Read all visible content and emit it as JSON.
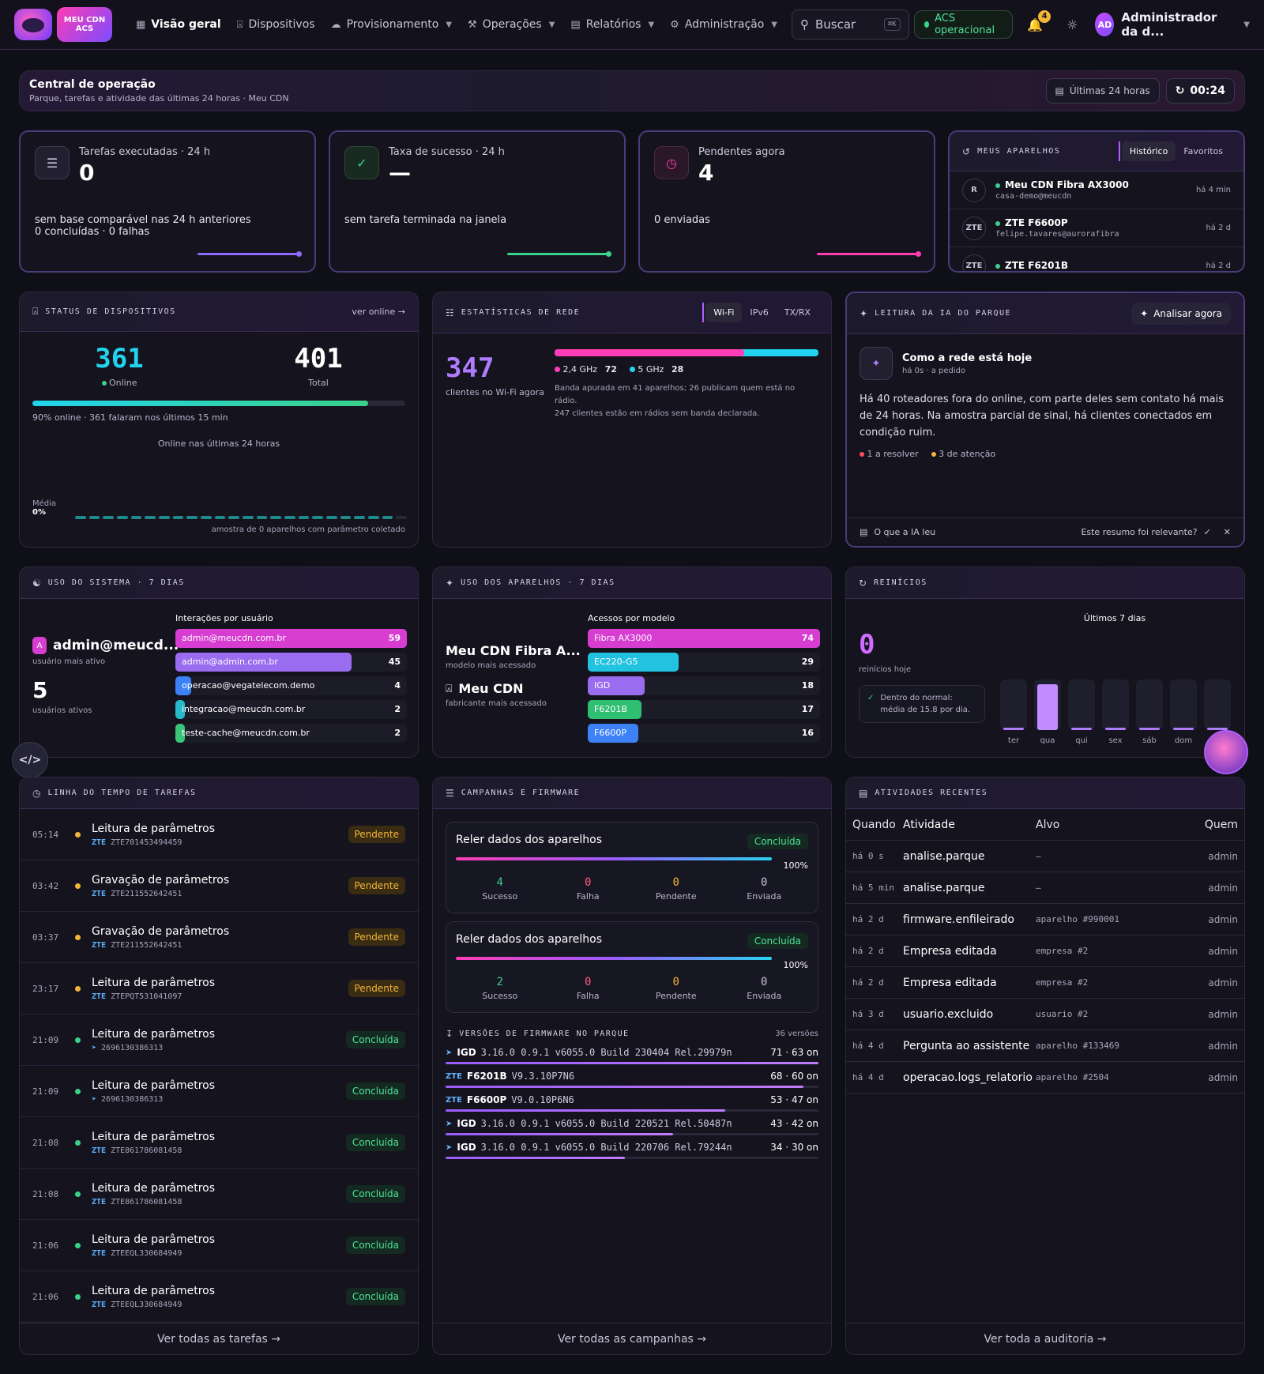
{
  "nav": {
    "logo_text_1": "MEU CDN",
    "logo_text_2": "ACS",
    "items": [
      {
        "label": "Visão geral",
        "icon": "grid-icon",
        "active": true
      },
      {
        "label": "Dispositivos",
        "icon": "router-icon"
      },
      {
        "label": "Provisionamento",
        "icon": "cloud-icon",
        "dropdown": true
      },
      {
        "label": "Operações",
        "icon": "wrench-icon",
        "dropdown": true
      },
      {
        "label": "Relatórios",
        "icon": "file-icon",
        "dropdown": true
      },
      {
        "label": "Administração",
        "icon": "gear-icon",
        "dropdown": true
      }
    ],
    "search_placeholder": "Buscar",
    "search_kbd": "⌘K",
    "acs_status": "ACS operacional",
    "notifications": "4",
    "user_initials": "AD",
    "user_name": "Administrador da d..."
  },
  "banner": {
    "title": "Central de operação",
    "subtitle": "Parque, tarefas e atividade das últimas 24 horas · Meu CDN",
    "range": "Últimas 24 horas",
    "refresh": "00:24"
  },
  "kpis": [
    {
      "label": "Tarefas executadas · 24 h",
      "value": "0",
      "foot": "sem base comparável nas 24 h anteriores",
      "foot2": "0 concluídas · 0 falhas",
      "color": "#8b6cff"
    },
    {
      "label": "Taxa de sucesso · 24 h",
      "value": "—",
      "foot": "sem tarefa terminada na janela",
      "foot2": "",
      "color": "#3ad18a"
    },
    {
      "label": "Pendentes agora",
      "value": "4",
      "foot": "0 enviadas",
      "foot2": "",
      "color": "#ff3db4"
    }
  ],
  "meus_aparelhos": {
    "title": "Meus aparelhos",
    "tabs": [
      "Histórico",
      "Favoritos"
    ],
    "items": [
      {
        "name": "Meu CDN Fibra AX3000",
        "sub": "casa-demo@meucdn",
        "time": "há 4 min",
        "icon": "R"
      },
      {
        "name": "ZTE F6600P",
        "sub": "felipe.tavares@aurorafibra",
        "time": "há 2 d",
        "icon": "ZTE"
      },
      {
        "name": "ZTE F6201B",
        "sub": "",
        "time": "há 2 d",
        "icon": "ZTE"
      }
    ]
  },
  "status_dispositivos": {
    "title": "Status de dispositivos",
    "link": "ver online →",
    "online": "361",
    "online_label": "Online",
    "total": "401",
    "total_label": "Total",
    "online_fraction": 0.9,
    "summary": "90% online · 361 falaram nos últimos 15 min",
    "chart_title": "Online nas últimas 24 horas",
    "media_label": "Média",
    "media_value": "0%",
    "note": "amostra de 0 aparelhos com parâmetro coletado"
  },
  "estatisticas_rede": {
    "title": "Estatísticas de rede",
    "tabs": [
      "Wi-Fi",
      "IPv6",
      "TX/RX"
    ],
    "clients": "347",
    "clients_label": "clientes no Wi-Fi agora",
    "band24_label": "2,4 GHz",
    "band24_value": 72,
    "band5_label": "5 GHz",
    "band5_value": 28,
    "note1": "Banda apurada em 41 aparelhos; 26 publicam quem está no rádio.",
    "note2": "247 clientes estão em rádios sem banda declarada."
  },
  "ia": {
    "title": "Leitura da IA do parque",
    "button": "Analisar agora",
    "headline": "Como a rede está hoje",
    "time": "há 0s · a pedido",
    "text": "Há 40 roteadores fora do online, com parte deles sem contato há mais de 24 horas. Na amostra parcial de sinal, há clientes conectados em condição ruim.",
    "tag1": "1 a resolver",
    "tag2": "3 de atenção",
    "footer_left": "O que a IA leu",
    "footer_right": "Este resumo foi relevante?"
  },
  "uso_sistema": {
    "title": "Uso do sistema · 7 dias",
    "top_user": "admin@meucd...",
    "top_user_initial": "A",
    "top_user_label": "usuário mais ativo",
    "active_users": "5",
    "active_users_label": "usuários ativos",
    "chart_title": "Interações por usuário",
    "bars": [
      {
        "label": "admin@meucdn.com.br",
        "value": 59,
        "color": "#d63dd0"
      },
      {
        "label": "admin@admin.com.br",
        "value": 45,
        "color": "#9a6cf0"
      },
      {
        "label": "operacao@vegatelecom.demo",
        "value": 4,
        "color": "#3c82f6"
      },
      {
        "label": "integracao@meucdn.com.br",
        "value": 2,
        "color": "#29b8c8"
      },
      {
        "label": "teste-cache@meucdn.com.br",
        "value": 2,
        "color": "#3ac47a"
      }
    ]
  },
  "uso_aparelhos": {
    "title": "Uso dos aparelhos · 7 dias",
    "model": "Meu CDN Fibra A...",
    "model_label": "modelo mais acessado",
    "maker": "Meu CDN",
    "maker_label": "fabricante mais acessado",
    "chart_title": "Acessos por modelo",
    "bars": [
      {
        "label": "Fibra AX3000",
        "value": 74,
        "color": "#d63dd0"
      },
      {
        "label": "EC220-G5",
        "value": 29,
        "color": "#22c3e0"
      },
      {
        "label": "IGD",
        "value": 18,
        "color": "#9a6cf0"
      },
      {
        "label": "F6201B",
        "value": 17,
        "color": "#2ebf72"
      },
      {
        "label": "F6600P",
        "value": 16,
        "color": "#3c82f6"
      }
    ]
  },
  "reinicios": {
    "title": "Reinícios",
    "value": "0",
    "value_label": "reinícios hoje",
    "normal_1": "Dentro do normal:",
    "normal_2": "média de 15.8 por dia.",
    "chart_title": "Últimos 7 dias",
    "days": [
      {
        "label": "ter",
        "value": 0.05
      },
      {
        "label": "qua",
        "value": 0.9
      },
      {
        "label": "qui",
        "value": 0.05
      },
      {
        "label": "sex",
        "value": 0.05
      },
      {
        "label": "sáb",
        "value": 0.05
      },
      {
        "label": "dom",
        "value": 0.05
      },
      {
        "label": "",
        "value": 0.05
      }
    ]
  },
  "timeline": {
    "title": "Linha do tempo de tarefas",
    "link": "Ver todas as tarefas →",
    "rows": [
      {
        "time": "05:14",
        "title": "Leitura de parâmetros",
        "maker": "ZTE",
        "serial": "ZTE701453494459",
        "status": "Pendente",
        "state": "pend"
      },
      {
        "time": "03:42",
        "title": "Gravação de parâmetros",
        "maker": "ZTE",
        "serial": "ZTE211552642451",
        "status": "Pendente",
        "state": "pend"
      },
      {
        "time": "03:37",
        "title": "Gravação de parâmetros",
        "maker": "ZTE",
        "serial": "ZTE211552642451",
        "status": "Pendente",
        "state": "pend"
      },
      {
        "time": "23:17",
        "title": "Leitura de parâmetros",
        "maker": "ZTE",
        "serial": "ZTEPQT531041097",
        "status": "Pendente",
        "state": "pend"
      },
      {
        "time": "21:09",
        "title": "Leitura de parâmetros",
        "maker": "",
        "serial": "2696130386313",
        "status": "Concluída",
        "state": "done"
      },
      {
        "time": "21:09",
        "title": "Leitura de parâmetros",
        "maker": "",
        "serial": "2696130386313",
        "status": "Concluída",
        "state": "done"
      },
      {
        "time": "21:08",
        "title": "Leitura de parâmetros",
        "maker": "ZTE",
        "serial": "ZTE861786081458",
        "status": "Concluída",
        "state": "done"
      },
      {
        "time": "21:08",
        "title": "Leitura de parâmetros",
        "maker": "ZTE",
        "serial": "ZTE861786081458",
        "status": "Concluída",
        "state": "done"
      },
      {
        "time": "21:06",
        "title": "Leitura de parâmetros",
        "maker": "ZTE",
        "serial": "ZTEEQL330684949",
        "status": "Concluída",
        "state": "done"
      },
      {
        "time": "21:06",
        "title": "Leitura de parâmetros",
        "maker": "ZTE",
        "serial": "ZTEEQL330684949",
        "status": "Concluída",
        "state": "done"
      }
    ]
  },
  "campanhas": {
    "title": "Campanhas e firmware",
    "link": "Ver todas as campanhas →",
    "items": [
      {
        "title": "Reler dados dos aparelhos",
        "status": "Concluída",
        "pct": "100%",
        "sucesso": "4",
        "falha": "0",
        "pendente": "0",
        "enviada": "0"
      },
      {
        "title": "Reler dados dos aparelhos",
        "status": "Concluída",
        "pct": "100%",
        "sucesso": "2",
        "falha": "0",
        "pendente": "0",
        "enviada": "0"
      }
    ],
    "stat_labels": [
      "Sucesso",
      "Falha",
      "Pendente",
      "Enviada"
    ],
    "fw_title": "Versões de firmware no parque",
    "fw_count": "36 versões",
    "fw": [
      {
        "maker": "IGD",
        "version": "3.16.0 0.9.1 v6055.0 Build 230404 Rel.29979n",
        "count": "71 · 63 on",
        "fraction": 1.0
      },
      {
        "maker": "F6201B",
        "version": "V9.3.10P7N6",
        "count": "68 · 60 on",
        "fraction": 0.96
      },
      {
        "maker": "F6600P",
        "version": "V9.0.10P6N6",
        "count": "53 · 47 on",
        "fraction": 0.75
      },
      {
        "maker": "IGD",
        "version": "3.16.0 0.9.1 v6055.0 Build 220521 Rel.50487n",
        "count": "43 · 42 on",
        "fraction": 0.61
      },
      {
        "maker": "IGD",
        "version": "3.16.0 0.9.1 v6055.0 Build 220706 Rel.79244n",
        "count": "34 · 30 on",
        "fraction": 0.48
      }
    ]
  },
  "atividades": {
    "title": "Atividades recentes",
    "link": "Ver toda a auditoria →",
    "headers": [
      "Quando",
      "Atividade",
      "Alvo",
      "Quem"
    ],
    "rows": [
      {
        "when": "há 0 s",
        "what": "analise.parque",
        "target": "—",
        "who": "admin"
      },
      {
        "when": "há 5 min",
        "what": "analise.parque",
        "target": "—",
        "who": "admin"
      },
      {
        "when": "há 2 d",
        "what": "firmware.enfileirado",
        "target": "aparelho #990001",
        "who": "admin"
      },
      {
        "when": "há 2 d",
        "what": "Empresa editada",
        "target": "empresa #2",
        "who": "admin"
      },
      {
        "when": "há 2 d",
        "what": "Empresa editada",
        "target": "empresa #2",
        "who": "admin"
      },
      {
        "when": "há 3 d",
        "what": "usuario.excluido",
        "target": "usuario #2",
        "who": "admin"
      },
      {
        "when": "há 4 d",
        "what": "Pergunta ao assistente",
        "target": "aparelho #133469",
        "who": "admin"
      },
      {
        "when": "há 4 d",
        "what": "operacao.logs_relatorio",
        "target": "aparelho #2504",
        "who": "admin"
      }
    ]
  }
}
